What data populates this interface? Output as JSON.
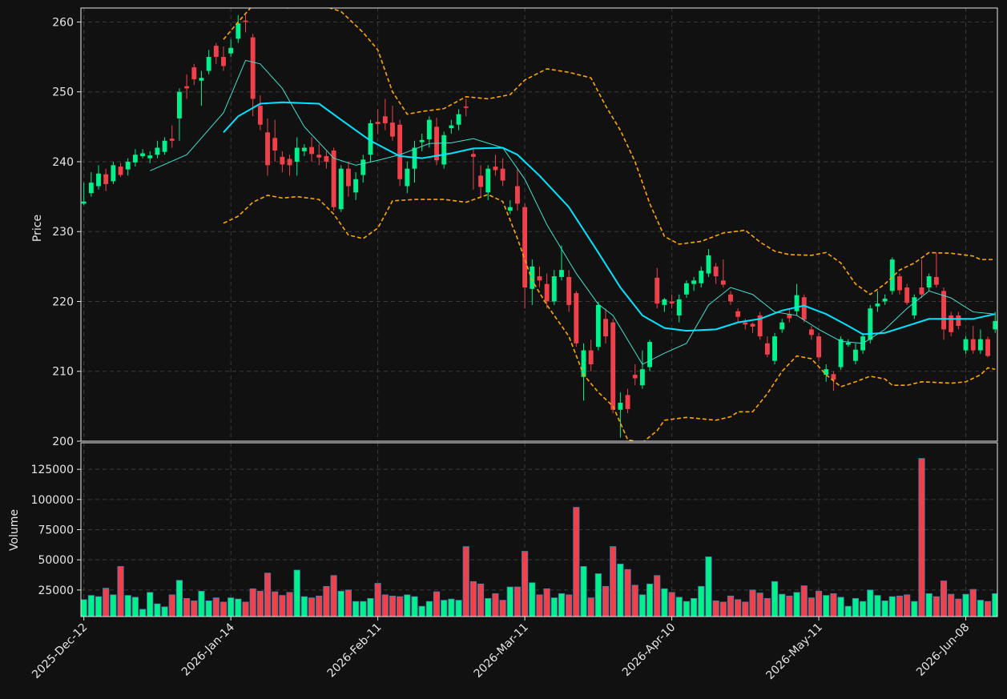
{
  "chart_data": [
    {
      "type": "candlestick",
      "y_label": "Price",
      "xlim": [
        -0.4,
        124.3
      ],
      "ylim": [
        200,
        262
      ],
      "yticks": [
        200,
        210,
        220,
        230,
        240,
        250,
        260
      ],
      "grid": true,
      "up_color": "#00f08c",
      "down_color": "#f0414a",
      "open": [
        234,
        235.5,
        236.5,
        238.2,
        237.2,
        239.3,
        238.9,
        239.9,
        240.8,
        240.5,
        241,
        241.4,
        243.3,
        246.2,
        250.8,
        253.5,
        251.6,
        253,
        256.6,
        255,
        255.5,
        257.6,
        260.2,
        257.8,
        248,
        244.2,
        243.4,
        240.7,
        240.4,
        240,
        241.5,
        242.1,
        241,
        240.8,
        241.6,
        233.2,
        239,
        235.6,
        238.1,
        241,
        245.7,
        246.5,
        245.6,
        245.3,
        236.5,
        239,
        242.8,
        243.2,
        245,
        239.6,
        244.8,
        245.3,
        247.9,
        241.1,
        238,
        235.6,
        239.3,
        239,
        233,
        236.5,
        233.5,
        221.8,
        223.6,
        222.5,
        220,
        223.5,
        223.5,
        221.2,
        209.2,
        213,
        213.5,
        217.5,
        217,
        204.5,
        206.6,
        209.5,
        208,
        210.6,
        223.4,
        219.5,
        220,
        218,
        221,
        222.5,
        222.6,
        224,
        225,
        223,
        221,
        218.6,
        217,
        216.8,
        218,
        214,
        211.5,
        216,
        218.2,
        218.6,
        220.6,
        216,
        215,
        209.5,
        209.6,
        210.6,
        213.8,
        211.5,
        213,
        214.5,
        219.3,
        220,
        221.5,
        223.6,
        222,
        218,
        222,
        222,
        223.5,
        221.5,
        218,
        218,
        213,
        214.6,
        213,
        214.6,
        216
      ],
      "high": [
        237,
        238.5,
        239.5,
        239,
        240,
        239.8,
        240.5,
        241.8,
        241.8,
        241.5,
        243,
        243.5,
        245.2,
        250.5,
        252.5,
        254,
        253,
        256,
        257,
        256.5,
        257.5,
        261,
        261,
        258.3,
        249.5,
        246.2,
        246,
        241.5,
        241,
        243.5,
        242.5,
        243.5,
        242.5,
        241.5,
        242,
        239.5,
        240,
        238.5,
        241,
        246,
        247.5,
        249,
        248,
        246,
        240,
        243,
        244,
        246.5,
        246.3,
        244.3,
        246,
        247.5,
        249,
        241.8,
        239.5,
        239.5,
        241,
        240.5,
        234.5,
        239,
        234,
        226,
        225,
        224,
        224.5,
        228,
        224.5,
        221.5,
        214,
        214.5,
        220,
        219,
        217.5,
        207,
        207.5,
        211,
        213,
        214.5,
        224.8,
        220.5,
        221,
        221,
        223,
        223.5,
        225,
        227.5,
        225.5,
        226,
        221.5,
        219,
        217.5,
        217,
        218.5,
        215,
        215.5,
        217.5,
        219,
        222.5,
        221,
        216.5,
        215.5,
        211,
        210,
        215,
        214.6,
        214,
        215.5,
        219.5,
        221.5,
        221,
        226.3,
        224,
        222.5,
        221,
        226,
        224,
        227,
        222,
        218.5,
        218.5,
        215,
        216.5,
        216,
        215,
        218.5
      ],
      "low": [
        233.8,
        235,
        236,
        235.8,
        236.8,
        237.8,
        238,
        239.3,
        240.5,
        239.8,
        240.5,
        241,
        242,
        243,
        249,
        251,
        248,
        252.5,
        254,
        253,
        255,
        257,
        258.5,
        246.5,
        244.5,
        238,
        240,
        238.5,
        238,
        238,
        240.8,
        240,
        239.5,
        239,
        233,
        232.8,
        235,
        234.5,
        237,
        240,
        244,
        244.5,
        243,
        236.5,
        235.5,
        237,
        241.5,
        242,
        239.5,
        239,
        244,
        244.5,
        246.5,
        236,
        235,
        234.5,
        238,
        236.5,
        232.5,
        233,
        219,
        219.5,
        222,
        219,
        219.5,
        223,
        218.5,
        213.5,
        205.8,
        210,
        213,
        214,
        204,
        200.5,
        204,
        208,
        207.5,
        210,
        219,
        218.5,
        219,
        217,
        220.5,
        221.5,
        222,
        223.5,
        222.5,
        222,
        219.5,
        217,
        216,
        215.5,
        214.5,
        212,
        211,
        215.5,
        217,
        218,
        217,
        214.5,
        211.5,
        208.5,
        207.2,
        210.2,
        213.5,
        211,
        212.5,
        214,
        218.5,
        219.5,
        221,
        221,
        219.5,
        217.5,
        220.5,
        221.5,
        222,
        214.5,
        215,
        216,
        212.5,
        212.5,
        212.5,
        212,
        215.5
      ],
      "close": [
        234.3,
        237,
        238.3,
        236.8,
        239.5,
        238.1,
        240,
        241,
        241.2,
        240.9,
        242,
        243,
        243,
        250,
        250.5,
        251.8,
        252,
        255,
        255,
        253.7,
        256.3,
        259.8,
        260,
        249,
        245.3,
        239.5,
        241.6,
        239.6,
        239.5,
        242,
        242,
        241.1,
        240.6,
        240,
        233.5,
        239,
        236.5,
        237.5,
        240.3,
        245.5,
        245.4,
        245.5,
        243.6,
        237.5,
        239,
        242,
        243.1,
        246,
        240.2,
        243.8,
        245.2,
        246.8,
        247.7,
        240.7,
        236.4,
        239,
        238.8,
        237.3,
        233.5,
        234,
        222,
        225,
        223,
        220,
        223.6,
        224.5,
        219.5,
        214,
        213,
        211,
        219.5,
        215,
        204.5,
        205.5,
        204.6,
        209,
        210.3,
        214.2,
        219.7,
        220.3,
        219.7,
        220.3,
        222.6,
        223,
        224.4,
        226.6,
        223.6,
        222.4,
        220,
        217.8,
        216.7,
        216.4,
        215,
        212.4,
        215,
        217,
        217.6,
        220.9,
        217.4,
        215.2,
        212,
        210.3,
        208.8,
        214.6,
        214.1,
        213.1,
        215,
        219,
        219.7,
        220.4,
        226,
        221.6,
        219.8,
        220.6,
        221,
        223.6,
        222.4,
        216,
        215.6,
        216.5,
        214.6,
        213,
        214.6,
        212.2,
        217.2
      ],
      "series": [
        {
          "color": "#40e0d0",
          "linestyle": "thin",
          "x": [
            9,
            14,
            19,
            22,
            24,
            27,
            30,
            34,
            37,
            40,
            43,
            47,
            50,
            53,
            57,
            60,
            63,
            67,
            70,
            72,
            74,
            76,
            79,
            82,
            85,
            88,
            91,
            94,
            97,
            100,
            103,
            106,
            109,
            112,
            115,
            118,
            121,
            124
          ],
          "values": [
            238.7,
            241,
            247,
            254.5,
            254,
            250.5,
            245,
            240.5,
            239.5,
            240.2,
            241,
            242.6,
            242.7,
            243.3,
            242,
            237.5,
            231,
            224,
            219.6,
            218,
            214.5,
            211,
            212.6,
            214,
            219.5,
            222,
            221,
            218.5,
            218,
            216,
            214.3,
            214,
            216,
            219,
            221.5,
            220.5,
            218.5,
            218.2
          ]
        },
        {
          "color": "#00e5ff",
          "linestyle": "bold",
          "x": [
            19,
            21,
            24,
            27,
            32,
            35,
            39,
            43,
            46,
            50,
            53,
            57,
            59,
            62,
            66,
            70,
            73,
            76,
            79,
            82,
            86,
            89,
            92,
            95,
            98,
            101,
            104,
            106,
            109,
            112,
            115,
            118,
            121,
            124
          ],
          "values": [
            244.2,
            246.5,
            248.3,
            248.5,
            248.3,
            246,
            243,
            240.8,
            240.5,
            241.2,
            241.9,
            242,
            241,
            238,
            233.5,
            227,
            222,
            218,
            216.2,
            215.8,
            216,
            217,
            217.5,
            218.7,
            219.4,
            218.2,
            216.5,
            215.3,
            215.5,
            216.5,
            217.5,
            217.5,
            217.5,
            218.2
          ]
        },
        {
          "color": "#ffa500",
          "linestyle": "dashed",
          "x": [
            19,
            21,
            23,
            25,
            28,
            32,
            35,
            38,
            40,
            42,
            44,
            46,
            49,
            52,
            55,
            58,
            60,
            63,
            66,
            69,
            71,
            73,
            75,
            77,
            79,
            81,
            84,
            87,
            90,
            92,
            94,
            96,
            99,
            101,
            103,
            105,
            107,
            109,
            111,
            113,
            115,
            118,
            121,
            122,
            124
          ],
          "values": [
            257.5,
            260,
            262.4,
            262.2,
            262,
            262.5,
            261.5,
            258.5,
            256,
            250,
            246.8,
            247.2,
            247.6,
            249.3,
            249,
            249.6,
            251.7,
            253.3,
            252.8,
            252,
            248,
            244.5,
            240,
            234,
            229.3,
            228.2,
            228.6,
            229.8,
            230.2,
            228.5,
            227.2,
            226.7,
            226.6,
            227,
            225.5,
            222.5,
            221,
            222.5,
            224.5,
            225.5,
            227,
            226.9,
            226.5,
            226,
            226
          ]
        },
        {
          "color": "#ffa500",
          "linestyle": "dashed",
          "x": [
            19,
            21,
            23,
            25,
            27,
            29,
            32,
            34,
            36,
            38,
            40,
            42,
            45,
            49,
            52,
            55,
            57,
            59,
            61,
            63,
            66,
            68,
            70,
            72,
            74,
            76,
            78,
            79,
            82,
            86,
            88,
            89,
            91,
            93,
            95,
            97,
            99,
            101,
            103,
            105,
            107,
            109,
            110,
            112,
            114,
            118,
            120,
            122,
            123,
            124
          ],
          "values": [
            231.2,
            232.2,
            234.2,
            235.2,
            234.8,
            235,
            234.6,
            232.5,
            229.5,
            229,
            230.5,
            234.4,
            234.6,
            234.6,
            234.2,
            235.3,
            234.3,
            229,
            223,
            219.5,
            215,
            209.5,
            207,
            205,
            200.2,
            199.8,
            201.5,
            203,
            203.4,
            203,
            203.5,
            204.2,
            204.2,
            206.8,
            210,
            212.2,
            211.8,
            209.5,
            207.8,
            208.5,
            209.3,
            208.9,
            208,
            208,
            208.5,
            208.3,
            208.5,
            209.5,
            210.5,
            210.3
          ]
        }
      ]
    },
    {
      "type": "volume",
      "y_label": "Volume",
      "ylim": [
        3000,
        147000
      ],
      "yticks": [
        25000,
        50000,
        75000,
        100000,
        125000
      ],
      "grid": true,
      "edge_color": "#4a7ab0",
      "values": [
        17000,
        20500,
        19500,
        26500,
        21000,
        44500,
        20500,
        19000,
        9000,
        23000,
        13500,
        11000,
        21000,
        33000,
        18000,
        16000,
        24000,
        16000,
        18500,
        15000,
        18500,
        17500,
        15000,
        26000,
        24000,
        39000,
        23500,
        20500,
        23000,
        41500,
        19500,
        18500,
        20000,
        28000,
        37000,
        24000,
        25000,
        15500,
        15500,
        18000,
        30500,
        21000,
        20000,
        19500,
        21000,
        19500,
        11500,
        15500,
        23500,
        16500,
        17500,
        16500,
        61000,
        32000,
        30000,
        18000,
        22000,
        16500,
        27500,
        27500,
        57000,
        31000,
        21000,
        26000,
        18500,
        22000,
        21000,
        93500,
        44500,
        18500,
        38500,
        28000,
        61000,
        46500,
        42000,
        29000,
        21000,
        30000,
        37000,
        26000,
        23000,
        19000,
        15500,
        18000,
        28000,
        52500,
        16000,
        15000,
        20000,
        17000,
        15000,
        25000,
        22500,
        18000,
        32000,
        21500,
        20000,
        23000,
        28500,
        18500,
        24000,
        20500,
        22000,
        19000,
        11500,
        18000,
        15500,
        25000,
        20500,
        16000,
        19500,
        20000,
        21000,
        15500,
        134000,
        22000,
        19500,
        32500,
        21500,
        17500,
        21500,
        25500,
        16500,
        15500,
        22000
      ],
      "xticks": [
        {
          "value": 0,
          "label": "2025-Dec-12"
        },
        {
          "value": 20,
          "label": "2026-Jan-14"
        },
        {
          "value": 40,
          "label": "2026-Feb-11"
        },
        {
          "value": 60,
          "label": "2026-Mar-11"
        },
        {
          "value": 80,
          "label": "2026-Apr-10"
        },
        {
          "value": 100,
          "label": "2026-May-11"
        },
        {
          "value": 120,
          "label": "2026-Jun-08"
        }
      ]
    }
  ]
}
